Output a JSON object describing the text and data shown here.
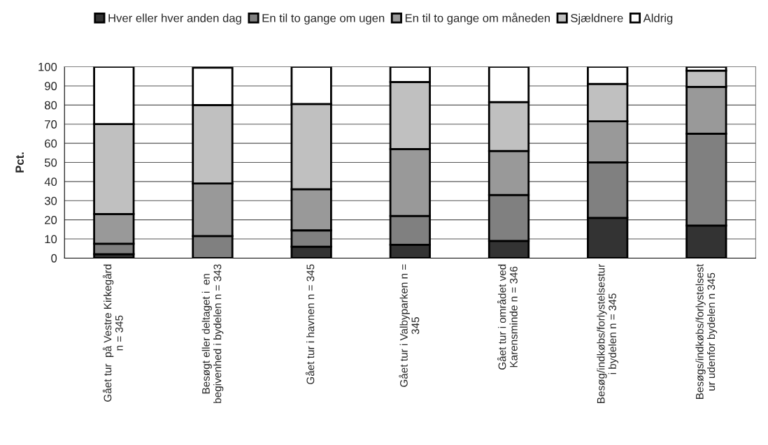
{
  "chart_data": {
    "type": "bar",
    "stacked": true,
    "ylabel": "Pct.",
    "categories": [
      "Gået tur  på Vestre Kirkegård\nn = 345",
      "Besøgt eller deltaget i  en\nbegivenhed i bydelen n = 343",
      "Gået tur i havnen n = 345",
      "Gået tur i Valbyparken n =\n345",
      "Gået tur i området ved\nKarensminde n = 346",
      "Besøg/indkøbs/forlystelsestur\ni bydelen n = 345",
      "Besøgs/indkøbs/forlystelsest\nur udenfor bydelen n 345"
    ],
    "series": [
      {
        "name": "Hver eller hver anden dag",
        "color": "#333333",
        "values": [
          2,
          null,
          6,
          7,
          9,
          21,
          17
        ]
      },
      {
        "name": "En til to gange om ugen",
        "color": "#808080",
        "values": [
          5.5,
          11.5,
          8.5,
          15,
          24,
          29,
          48
        ]
      },
      {
        "name": "En til to gange om måneden",
        "color": "#999999",
        "values": [
          15.5,
          27.5,
          21.5,
          35,
          23,
          21.5,
          24.5
        ]
      },
      {
        "name": "Sjældnere",
        "color": "#c0c0c0",
        "values": [
          47,
          41,
          44.5,
          35,
          25.5,
          19.5,
          8.5
        ]
      },
      {
        "name": "Aldrig",
        "color": "#ffffff",
        "values": [
          30,
          19.5,
          19.5,
          8,
          18.5,
          9,
          2
        ]
      }
    ],
    "ylim": [
      0,
      100
    ],
    "yticks": [
      0,
      10,
      20,
      30,
      40,
      50,
      60,
      70,
      80,
      90,
      100
    ],
    "grid": "y",
    "legend": "top"
  }
}
